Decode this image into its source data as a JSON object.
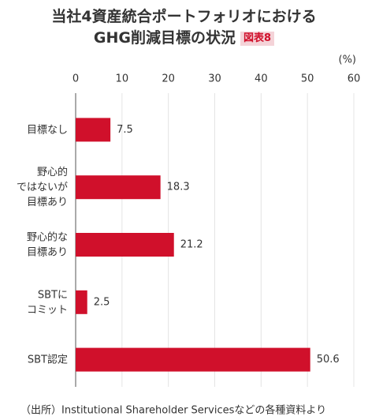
{
  "chart_data": {
    "type": "bar",
    "orientation": "horizontal",
    "title": [
      "当社4資産統合ポートフォリオにおける",
      "GHG削減目標の状況"
    ],
    "figure_label": "図表8",
    "unit": "(%)",
    "categories": [
      "目標なし",
      "野心的\nではないが\n目標あり",
      "野心的な\n目標あり",
      "SBTに\nコミット",
      "SBT認定"
    ],
    "values": [
      7.5,
      18.3,
      21.2,
      2.5,
      50.6
    ],
    "color": "#d0102b",
    "xlim": [
      0,
      60
    ],
    "xticks": [
      0,
      10,
      20,
      30,
      40,
      50,
      60
    ],
    "grid": true,
    "source": "（出所）Institutional Shareholder Servicesなどの各種資料より"
  }
}
